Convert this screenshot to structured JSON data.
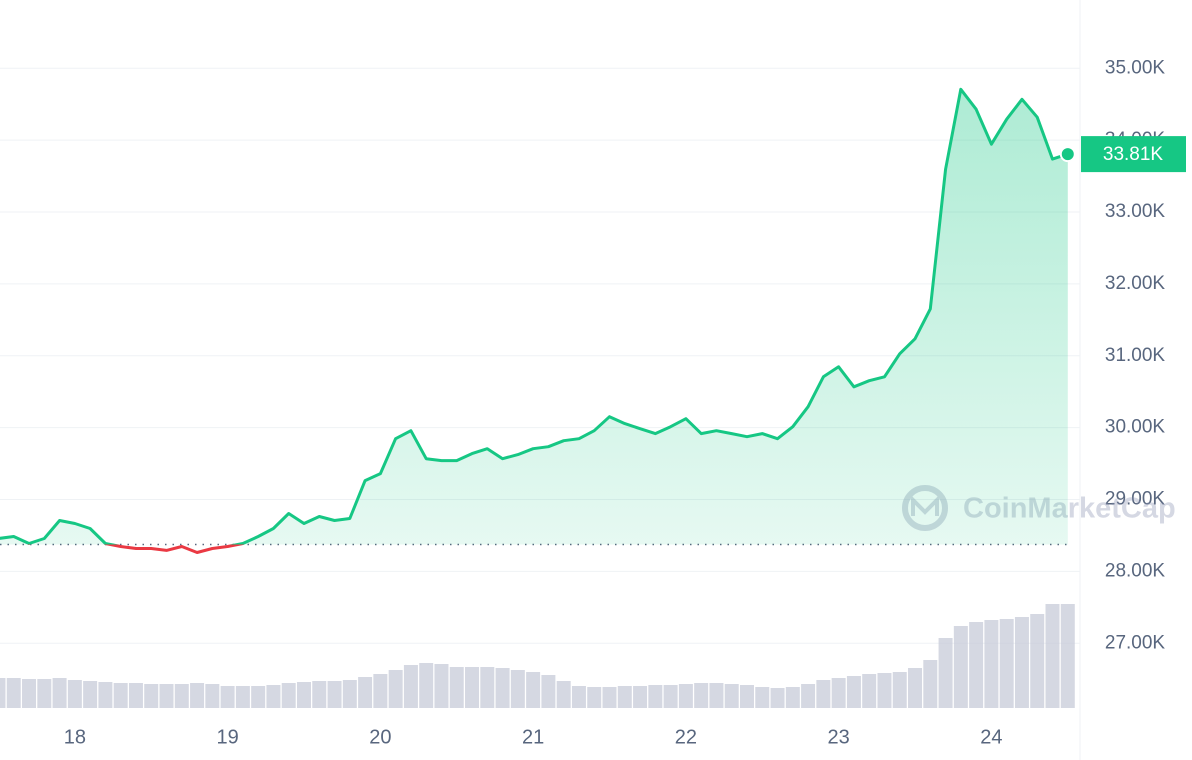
{
  "chart_data": {
    "type": "line",
    "x": [
      17.5,
      17.6,
      17.7,
      17.8,
      17.9,
      18.0,
      18.1,
      18.2,
      18.3,
      18.4,
      18.5,
      18.6,
      18.7,
      18.8,
      18.9,
      19.0,
      19.1,
      19.2,
      19.3,
      19.4,
      19.5,
      19.6,
      19.7,
      19.8,
      19.9,
      20.0,
      20.1,
      20.2,
      20.3,
      20.4,
      20.5,
      20.6,
      20.7,
      20.8,
      20.9,
      21.0,
      21.1,
      21.2,
      21.3,
      21.4,
      21.5,
      21.6,
      21.7,
      21.8,
      21.9,
      22.0,
      22.1,
      22.2,
      22.3,
      22.4,
      22.5,
      22.6,
      22.7,
      22.8,
      22.9,
      23.0,
      23.1,
      23.2,
      23.3,
      23.4,
      23.5,
      23.6,
      23.7,
      23.8,
      23.9,
      24.0,
      24.1,
      24.2,
      24.3,
      24.4,
      24.5
    ],
    "values": [
      28458,
      28486,
      28389,
      28458,
      28708,
      28667,
      28597,
      28389,
      28347,
      28319,
      28319,
      28292,
      28347,
      28264,
      28319,
      28347,
      28389,
      28486,
      28597,
      28806,
      28667,
      28764,
      28708,
      28736,
      29264,
      29361,
      29847,
      29958,
      29569,
      29542,
      29542,
      29639,
      29708,
      29569,
      29625,
      29708,
      29736,
      29819,
      29847,
      29958,
      30153,
      30056,
      29986,
      29917,
      30014,
      30125,
      29917,
      29958,
      29917,
      29875,
      29917,
      29847,
      30014,
      30292,
      30708,
      30847,
      30569,
      30653,
      30708,
      31028,
      31236,
      31653,
      33597,
      34708,
      34431,
      33944,
      34292,
      34569,
      34319,
      33736,
      33806
    ],
    "volume": [
      30,
      30,
      29,
      29,
      30,
      28,
      27,
      26,
      25,
      25,
      24,
      24,
      24,
      25,
      24,
      22,
      22,
      22,
      23,
      25,
      26,
      27,
      27,
      28,
      31,
      34,
      38,
      43,
      45,
      44,
      41,
      41,
      41,
      40,
      38,
      36,
      33,
      27,
      22,
      21,
      21,
      22,
      22,
      23,
      23,
      24,
      25,
      25,
      24,
      23,
      21,
      20,
      21,
      24,
      28,
      30,
      32,
      34,
      35,
      36,
      40,
      48,
      70,
      82,
      86,
      88,
      89,
      91,
      94,
      104,
      104
    ],
    "color": "#16c784",
    "down_color": "#ea3943",
    "volume_color": "#c3c7d6",
    "baseline": 28375,
    "last_value_label": "33.81K",
    "watermark": "CoinMarketCap",
    "xlim": [
      17.51,
      24.58
    ],
    "xticks": [
      18,
      19,
      20,
      21,
      22,
      23,
      24
    ],
    "ylim": [
      26100,
      35950
    ],
    "yticks": [
      {
        "value": 27000,
        "label": "27.00K"
      },
      {
        "value": 28000,
        "label": "28.00K"
      },
      {
        "value": 29000,
        "label": "29.00K"
      },
      {
        "value": 30000,
        "label": "30.00K"
      },
      {
        "value": 31000,
        "label": "31.00K"
      },
      {
        "value": 32000,
        "label": "32.00K"
      },
      {
        "value": 33000,
        "label": "33.00K"
      },
      {
        "value": 34000,
        "label": "34.00K"
      },
      {
        "value": 35000,
        "label": "35.00K"
      }
    ],
    "volume_lim": [
      0,
      120
    ],
    "grid": true
  }
}
